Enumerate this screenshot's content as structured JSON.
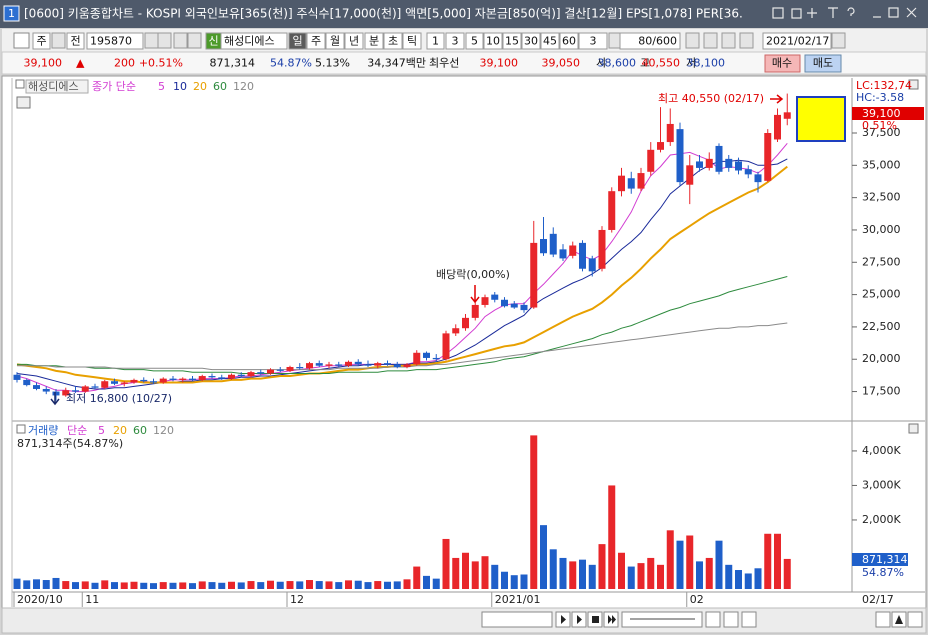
{
  "window": {
    "icon": "1",
    "title": "[0600] 키움종합차트 - KOSPI 외국인보유[365(천)] 주식수[17,000(천)] 액면[5,000] 자본금[850(억)] 결산[12월] EPS[1,078] PER[36."
  },
  "toolbar": {
    "items": [
      "주",
      "전",
      "195870",
      "신",
      "해성디에스",
      "일",
      "주",
      "월",
      "년",
      "분",
      "초",
      "틱",
      "1",
      "3",
      "5",
      "10",
      "15",
      "30",
      "45",
      "60",
      "3",
      "80/600",
      "2021/02/17"
    ]
  },
  "quote": {
    "items": [
      "39,100",
      "▲",
      "200",
      "+0.51%",
      "871,314",
      "54.87%",
      "5.13%",
      "34,347백만",
      "최우선",
      "39,100",
      "39,050",
      "시",
      "38,600",
      "고",
      "40,550",
      "저",
      "38,100",
      "매수",
      "매도"
    ]
  },
  "chart_data": [
    {
      "type": "candlestick",
      "title": "해성디에스",
      "legend_prefix": "종가 단순",
      "categories": [
        "2020/10",
        null,
        null,
        null,
        null,
        null,
        null,
        "11",
        null,
        null,
        null,
        null,
        null,
        null,
        null,
        null,
        null,
        null,
        null,
        null,
        null,
        null,
        null,
        null,
        null,
        null,
        null,
        null,
        "12",
        null,
        null,
        null,
        null,
        null,
        null,
        null,
        null,
        null,
        null,
        null,
        null,
        null,
        null,
        null,
        null,
        null,
        null,
        null,
        null,
        "2021/01",
        null,
        null,
        null,
        null,
        null,
        null,
        null,
        null,
        null,
        null,
        null,
        null,
        null,
        null,
        null,
        null,
        null,
        null,
        null,
        "02",
        null,
        null,
        null,
        null,
        null,
        null,
        null,
        null,
        null,
        null
      ],
      "open": [
        18800,
        18400,
        18000,
        17700,
        17500,
        17200,
        17600,
        17500,
        17900,
        17800,
        18300,
        18100,
        18200,
        18400,
        18300,
        18200,
        18500,
        18400,
        18500,
        18400,
        18700,
        18600,
        18500,
        18800,
        18700,
        19000,
        18900,
        19200,
        19100,
        19400,
        19300,
        19700,
        19500,
        19600,
        19500,
        19800,
        19600,
        19500,
        19700,
        19600,
        19400,
        19600,
        20500,
        20100,
        20000,
        22000,
        22400,
        23200,
        24200,
        25000,
        24600,
        24300,
        24200,
        24000,
        29300,
        29700,
        28500,
        28000,
        29000,
        27800,
        27000,
        30000,
        33000,
        34000,
        33200,
        34500,
        36200,
        36800,
        37800,
        33500,
        35300,
        34800,
        36500,
        35500,
        35300,
        34700,
        34300,
        33800,
        37000,
        38600
      ],
      "high": [
        19000,
        18500,
        18200,
        17900,
        17700,
        17800,
        17900,
        18000,
        18100,
        18400,
        18500,
        18300,
        18500,
        18600,
        18500,
        18600,
        18700,
        18600,
        18700,
        18800,
        18900,
        18800,
        18900,
        19000,
        19100,
        19200,
        19300,
        19400,
        19500,
        19700,
        19800,
        19900,
        19800,
        19800,
        19900,
        20000,
        19900,
        19800,
        19900,
        19800,
        19700,
        20700,
        20600,
        20400,
        22200,
        22700,
        23500,
        24400,
        25000,
        25200,
        24800,
        24500,
        24400,
        30700,
        31000,
        30200,
        28900,
        29100,
        29200,
        28000,
        30300,
        33300,
        34800,
        34500,
        34800,
        36800,
        39500,
        39400,
        38300,
        35800,
        35800,
        36000,
        36700,
        35800,
        35600,
        35000,
        34500,
        37800,
        39400,
        40550
      ],
      "low": [
        18200,
        17900,
        17600,
        17300,
        16800,
        17100,
        17400,
        17400,
        17700,
        17700,
        18000,
        17900,
        18100,
        18200,
        18100,
        18100,
        18300,
        18200,
        18300,
        18300,
        18500,
        18400,
        18400,
        18600,
        18600,
        18800,
        18800,
        19000,
        19000,
        19200,
        19200,
        19400,
        19300,
        19400,
        19400,
        19500,
        19400,
        19300,
        19500,
        19300,
        19300,
        19500,
        19900,
        19800,
        19900,
        21800,
        22200,
        23000,
        24000,
        24400,
        24000,
        23900,
        23600,
        23900,
        28000,
        27900,
        27600,
        27800,
        26800,
        26400,
        26800,
        29800,
        32600,
        32800,
        33000,
        34200,
        36000,
        36500,
        33400,
        32000,
        34500,
        34600,
        34300,
        34500,
        34300,
        34000,
        32900,
        33700,
        36800,
        38100
      ],
      "close": [
        18400,
        18000,
        17700,
        17500,
        17200,
        17600,
        17500,
        17900,
        17800,
        18300,
        18100,
        18200,
        18400,
        18300,
        18200,
        18500,
        18400,
        18500,
        18400,
        18700,
        18600,
        18500,
        18800,
        18700,
        19000,
        18900,
        19200,
        19100,
        19400,
        19300,
        19700,
        19500,
        19600,
        19500,
        19800,
        19600,
        19500,
        19700,
        19600,
        19400,
        19600,
        20500,
        20100,
        20000,
        22000,
        22400,
        23200,
        24200,
        24800,
        24600,
        24100,
        24000,
        23800,
        29000,
        28200,
        28100,
        27800,
        28800,
        27000,
        26800,
        30000,
        33000,
        34200,
        33200,
        34400,
        36200,
        36800,
        38200,
        33700,
        35000,
        34800,
        35500,
        34500,
        34800,
        34600,
        34300,
        33700,
        37500,
        38900,
        39100
      ],
      "up_color": "#e8262a",
      "down_color": "#1f5fc9",
      "series": [
        {
          "name": "5",
          "color": "#d23cd2",
          "values": [
            18700,
            18500,
            18200,
            17900,
            17600,
            17600,
            17500,
            17500,
            17600,
            17800,
            17900,
            18100,
            18200,
            18300,
            18200,
            18300,
            18400,
            18400,
            18400,
            18500,
            18500,
            18500,
            18600,
            18700,
            18700,
            18800,
            18900,
            19000,
            19100,
            19200,
            19300,
            19400,
            19500,
            19500,
            19600,
            19600,
            19600,
            19600,
            19600,
            19600,
            19600,
            19800,
            19800,
            19900,
            20400,
            21000,
            21700,
            22400,
            23300,
            23800,
            24200,
            24300,
            24300,
            25100,
            25800,
            26600,
            27400,
            28400,
            28000,
            27700,
            28100,
            29100,
            30200,
            31400,
            33000,
            34200,
            34900,
            35800,
            35900,
            36000,
            35700,
            35400,
            34700,
            34900,
            34800,
            34700,
            34400,
            35000,
            35800,
            36700
          ]
        },
        {
          "name": "10",
          "color": "#1a2a9a",
          "values": [
            18900,
            18800,
            18700,
            18500,
            18300,
            18100,
            17900,
            17800,
            17700,
            17700,
            17800,
            17800,
            17900,
            18000,
            18100,
            18200,
            18200,
            18300,
            18300,
            18400,
            18400,
            18500,
            18500,
            18600,
            18600,
            18700,
            18700,
            18800,
            18900,
            19000,
            19100,
            19200,
            19300,
            19400,
            19500,
            19500,
            19600,
            19600,
            19600,
            19600,
            19600,
            19700,
            19700,
            19800,
            20000,
            20300,
            20700,
            21100,
            21600,
            22100,
            22600,
            23000,
            23400,
            24200,
            24700,
            25100,
            25500,
            25900,
            26200,
            26600,
            27100,
            27800,
            28500,
            29100,
            29800,
            30800,
            31700,
            32800,
            33400,
            34000,
            34600,
            35000,
            35300,
            35300,
            35400,
            35300,
            35000,
            35000,
            35100,
            35500
          ]
        },
        {
          "name": "20",
          "color": "#e8a000",
          "values": [
            19600,
            19500,
            19400,
            19300,
            19100,
            19000,
            18800,
            18700,
            18600,
            18500,
            18400,
            18300,
            18300,
            18200,
            18200,
            18200,
            18200,
            18200,
            18200,
            18300,
            18300,
            18300,
            18400,
            18400,
            18500,
            18500,
            18600,
            18700,
            18700,
            18800,
            18900,
            18900,
            19000,
            19100,
            19200,
            19200,
            19300,
            19400,
            19400,
            19500,
            19500,
            19600,
            19600,
            19700,
            19800,
            20000,
            20200,
            20400,
            20600,
            20800,
            21000,
            21100,
            21300,
            21700,
            22100,
            22500,
            22900,
            23300,
            23600,
            23900,
            24400,
            25000,
            25700,
            26300,
            27000,
            27800,
            28500,
            29300,
            29800,
            30300,
            30800,
            31300,
            31700,
            32100,
            32500,
            32900,
            33200,
            33700,
            34300,
            34900
          ]
        },
        {
          "name": "60",
          "color": "#2e8b3e",
          "values": [
            19600,
            19600,
            19500,
            19500,
            19500,
            19400,
            19400,
            19400,
            19300,
            19300,
            19300,
            19200,
            19200,
            19200,
            19100,
            19100,
            19100,
            19100,
            19000,
            19000,
            19000,
            19000,
            19000,
            18900,
            18900,
            18900,
            18900,
            18900,
            18900,
            18900,
            18900,
            18900,
            18900,
            19000,
            19000,
            19000,
            19000,
            19000,
            19100,
            19100,
            19100,
            19200,
            19200,
            19200,
            19300,
            19400,
            19500,
            19600,
            19700,
            19800,
            20000,
            20100,
            20200,
            20400,
            20600,
            20800,
            21000,
            21200,
            21400,
            21600,
            21900,
            22100,
            22400,
            22600,
            22900,
            23200,
            23500,
            23800,
            24000,
            24300,
            24500,
            24700,
            24900,
            25200,
            25400,
            25600,
            25800,
            26000,
            26200,
            26400
          ]
        },
        {
          "name": "120",
          "color": "#8a8a8a",
          "values": [
            19500,
            19500,
            19500,
            19500,
            19400,
            19400,
            19400,
            19400,
            19400,
            19400,
            19300,
            19300,
            19300,
            19300,
            19300,
            19300,
            19300,
            19300,
            19300,
            19300,
            19200,
            19200,
            19200,
            19200,
            19200,
            19200,
            19200,
            19200,
            19200,
            19200,
            19200,
            19200,
            19200,
            19300,
            19300,
            19300,
            19300,
            19300,
            19400,
            19400,
            19400,
            19500,
            19500,
            19600,
            19600,
            19700,
            19800,
            19900,
            20000,
            20100,
            20200,
            20300,
            20400,
            20500,
            20600,
            20700,
            20800,
            20900,
            21000,
            21100,
            21200,
            21300,
            21400,
            21500,
            21600,
            21700,
            21800,
            21900,
            22000,
            22100,
            22200,
            22300,
            22400,
            22400,
            22500,
            22500,
            22600,
            22600,
            22700,
            22800
          ]
        }
      ],
      "ylim": [
        15300,
        41600
      ],
      "yticks": [
        {
          "value": 17500,
          "label": "17,500"
        },
        {
          "value": 20000,
          "label": "20,000"
        },
        {
          "value": 22500,
          "label": "22,500"
        },
        {
          "value": 25000,
          "label": "25,000"
        },
        {
          "value": 27500,
          "label": "27,500"
        },
        {
          "value": 30000,
          "label": "30,000"
        },
        {
          "value": 32500,
          "label": "32,500"
        },
        {
          "value": 35000,
          "label": "35,000"
        },
        {
          "value": 37500,
          "label": "37,500"
        }
      ],
      "annotations": [
        "최고 40,550 (02/17)",
        "최저 16,800 (10/27)",
        "배당락(0,00%)"
      ],
      "side_labels": [
        "LC:132,74",
        "HC:-3.58",
        "39,100",
        "0.51%"
      ],
      "cursor_date": "02/17"
    },
    {
      "type": "bar",
      "title": "거래량",
      "legend_prefix": "단순",
      "legend_items": [
        "5",
        "20",
        "60",
        "120"
      ],
      "legend_colors": [
        "#d23cd2",
        "#e8a000",
        "#2e8b3e",
        "#8a8a8a"
      ],
      "summary": "871,314주(54.87%)",
      "values": [
        300000,
        250000,
        280000,
        260000,
        320000,
        230000,
        200000,
        220000,
        180000,
        250000,
        200000,
        190000,
        210000,
        180000,
        170000,
        200000,
        180000,
        190000,
        170000,
        220000,
        200000,
        180000,
        210000,
        190000,
        230000,
        200000,
        240000,
        210000,
        230000,
        220000,
        260000,
        230000,
        220000,
        200000,
        250000,
        240000,
        200000,
        230000,
        210000,
        220000,
        280000,
        650000,
        380000,
        300000,
        1450000,
        900000,
        1050000,
        800000,
        950000,
        700000,
        500000,
        400000,
        420000,
        4450000,
        1850000,
        1150000,
        900000,
        800000,
        850000,
        700000,
        1300000,
        3000000,
        1050000,
        650000,
        750000,
        900000,
        700000,
        1700000,
        1400000,
        1550000,
        800000,
        900000,
        1400000,
        700000,
        550000,
        450000,
        600000,
        1600000,
        1600000,
        871314
      ],
      "ylim": [
        0,
        4780000
      ],
      "yticks": [
        {
          "value": 2000000,
          "label": "2,000K"
        },
        {
          "value": 3000000,
          "label": "3,000K"
        },
        {
          "value": 4000000,
          "label": "4,000K"
        }
      ],
      "side_labels": [
        "871,314",
        "54.87%"
      ]
    }
  ]
}
